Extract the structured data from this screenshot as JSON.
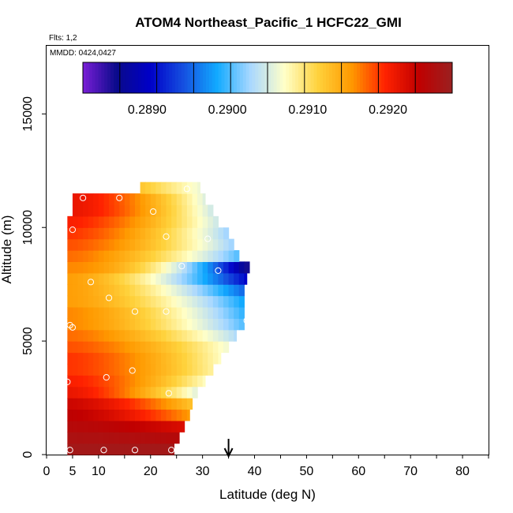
{
  "chart_data": {
    "type": "heatmap",
    "title": "ATOM4 Northeast_Pacific_1 HCFC22_GMI",
    "flights_label": "Flts: 1,2",
    "date_label": "MMDD: 0424,0427",
    "xlabel": "Latitude (deg N)",
    "ylabel": "Altitude (m)",
    "xlim": [
      0,
      85
    ],
    "ylim": [
      0,
      18000
    ],
    "x_ticks": [
      0,
      5,
      10,
      20,
      30,
      40,
      50,
      60,
      70,
      80
    ],
    "y_ticks": [
      0,
      5000,
      10000,
      15000
    ],
    "colorbar": {
      "min": 0.2882,
      "max": 0.2928,
      "tick_values": [
        0.289,
        0.29,
        0.291,
        0.292
      ],
      "tick_labels": [
        "0.2890",
        "0.2900",
        "0.2910",
        "0.2920"
      ],
      "colors": [
        "#7a1fd6",
        "#0a0a8a",
        "#0000c8",
        "#1550e0",
        "#12aaff",
        "#aad8ff",
        "#ffffc8",
        "#ffd23c",
        "#ff9900",
        "#ff2200",
        "#c00000",
        "#9a2020"
      ]
    },
    "marker_latitude": 35,
    "layers": [
      {
        "alt": 250,
        "lat_max": 24.5,
        "v0": 0.2927,
        "v1": 0.2927,
        "slope": 0.0
      },
      {
        "alt": 750,
        "lat_max": 25.5,
        "v0": 0.2926,
        "v1": 0.2925,
        "slope": 1.5
      },
      {
        "alt": 1250,
        "lat_max": 26.5,
        "v0": 0.2925,
        "v1": 0.2922,
        "slope": 1.5
      },
      {
        "alt": 1750,
        "lat_max": 27.5,
        "v0": 0.2924,
        "v1": 0.2915,
        "slope": 1.5
      },
      {
        "alt": 2250,
        "lat_max": 28.0,
        "v0": 0.2923,
        "v1": 0.2912,
        "slope": 1.5
      },
      {
        "alt": 2750,
        "lat_max": 29.0,
        "v0": 0.2921,
        "v1": 0.2905,
        "slope": 1.5
      },
      {
        "alt": 3250,
        "lat_max": 30.5,
        "v0": 0.292,
        "v1": 0.2907,
        "slope": 1.5
      },
      {
        "alt": 3750,
        "lat_max": 32.0,
        "v0": 0.2919,
        "v1": 0.2908,
        "slope": 1.5
      },
      {
        "alt": 4250,
        "lat_max": 33.5,
        "v0": 0.2919,
        "v1": 0.2907,
        "slope": 1.5
      },
      {
        "alt": 4750,
        "lat_max": 35.0,
        "v0": 0.2918,
        "v1": 0.2906,
        "slope": 1.5
      },
      {
        "alt": 5250,
        "lat_max": 36.5,
        "v0": 0.2917,
        "v1": 0.2903,
        "slope": 1.5
      },
      {
        "alt": 5750,
        "lat_max": 38.0,
        "v0": 0.2916,
        "v1": 0.29,
        "slope": 1.5
      },
      {
        "alt": 6250,
        "lat_max": 38.0,
        "v0": 0.2916,
        "v1": 0.2899,
        "slope": 1.5
      },
      {
        "alt": 6750,
        "lat_max": 38.0,
        "v0": 0.2915,
        "v1": 0.2898,
        "slope": 1.5
      },
      {
        "alt": 7250,
        "lat_max": 38.0,
        "v0": 0.2915,
        "v1": 0.2895,
        "slope": 1.5
      },
      {
        "alt": 7750,
        "lat_max": 38.5,
        "v0": 0.2915,
        "v1": 0.289,
        "slope": 1.5
      },
      {
        "alt": 8250,
        "lat_max": 39.0,
        "v0": 0.2916,
        "v1": 0.2884,
        "slope": 2.0
      },
      {
        "alt": 8750,
        "lat_max": 37.0,
        "v0": 0.2917,
        "v1": 0.29,
        "slope": 1.5
      },
      {
        "alt": 9250,
        "lat_max": 36.0,
        "v0": 0.2918,
        "v1": 0.2902,
        "slope": 1.5
      },
      {
        "alt": 9750,
        "lat_max": 35.0,
        "v0": 0.2919,
        "v1": 0.2902,
        "slope": 1.5
      },
      {
        "alt": 10250,
        "lat_max": 33.0,
        "v0": 0.292,
        "v1": 0.2904,
        "slope": 1.5
      },
      {
        "alt": 10750,
        "lat_max": 32.0,
        "v0": 0.2921,
        "v1": 0.2904,
        "slope": 1.5
      },
      {
        "alt": 11250,
        "lat_max": 30.5,
        "v0": 0.2921,
        "v1": 0.2905,
        "slope": 1.5
      },
      {
        "alt": 11750,
        "lat_max": 29.5,
        "v0": 0.2912,
        "v1": 0.2906,
        "slope": 1.0
      },
      {
        "alt": 12250,
        "lat_max": 29.0,
        "v0": 0.2908,
        "v1": 0.2906,
        "slope": 1.0
      }
    ],
    "layer_lat_min": [
      4,
      4,
      4,
      4,
      4,
      4,
      4,
      4,
      4,
      4,
      4,
      4,
      4,
      4,
      4,
      4,
      4,
      4,
      4,
      4,
      4,
      5,
      5,
      18,
      29
    ],
    "sample_points": [
      {
        "lat": 4.5,
        "alt": 200
      },
      {
        "lat": 11,
        "alt": 200
      },
      {
        "lat": 17,
        "alt": 200
      },
      {
        "lat": 24,
        "alt": 200
      },
      {
        "lat": 4,
        "alt": 3200
      },
      {
        "lat": 11.5,
        "alt": 3400
      },
      {
        "lat": 16.5,
        "alt": 3700
      },
      {
        "lat": 23.5,
        "alt": 2700
      },
      {
        "lat": 4.5,
        "alt": 5700
      },
      {
        "lat": 5,
        "alt": 5600
      },
      {
        "lat": 17,
        "alt": 6300
      },
      {
        "lat": 23,
        "alt": 6300
      },
      {
        "lat": 12,
        "alt": 6900
      },
      {
        "lat": 8.5,
        "alt": 7600
      },
      {
        "lat": 26,
        "alt": 8300
      },
      {
        "lat": 33,
        "alt": 8100
      },
      {
        "lat": 38.5,
        "alt": 5900
      },
      {
        "lat": 5,
        "alt": 9900
      },
      {
        "lat": 23,
        "alt": 9600
      },
      {
        "lat": 31,
        "alt": 9500
      },
      {
        "lat": 7,
        "alt": 11300
      },
      {
        "lat": 14,
        "alt": 11300
      },
      {
        "lat": 20.5,
        "alt": 10700
      },
      {
        "lat": 27,
        "alt": 11700
      }
    ]
  }
}
